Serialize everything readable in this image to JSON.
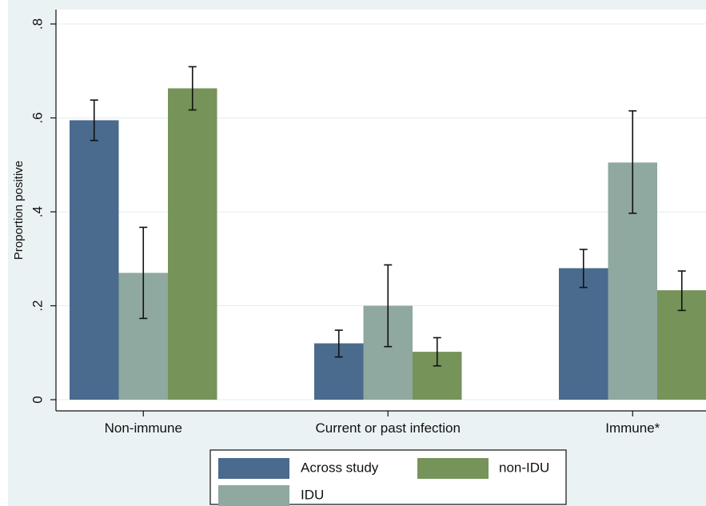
{
  "chart_data": {
    "type": "bar",
    "title": "",
    "xlabel": "",
    "ylabel": "Proportion positive",
    "ylim": [
      0,
      0.8
    ],
    "yticks": [
      0,
      0.2,
      0.4,
      0.6,
      0.8
    ],
    "ytick_labels": [
      "0",
      ".2",
      ".4",
      ".6",
      ".8"
    ],
    "categories": [
      "Non-immune",
      "Current or past infection",
      "Immune*"
    ],
    "series": [
      {
        "name": "Across study",
        "color": "#4a6a8e",
        "values": [
          0.595,
          0.12,
          0.28
        ],
        "ci_low": [
          0.552,
          0.091,
          0.239
        ],
        "ci_high": [
          0.638,
          0.148,
          0.32
        ]
      },
      {
        "name": "IDU",
        "color": "#8fa8a0",
        "values": [
          0.27,
          0.2,
          0.505
        ],
        "ci_low": [
          0.173,
          0.113,
          0.397
        ],
        "ci_high": [
          0.367,
          0.287,
          0.615
        ]
      },
      {
        "name": "non-IDU",
        "color": "#76935a",
        "values": [
          0.663,
          0.102,
          0.233
        ],
        "ci_low": [
          0.617,
          0.072,
          0.19
        ],
        "ci_high": [
          0.709,
          0.132,
          0.274
        ]
      }
    ],
    "grid": true,
    "legend_position": "bottom"
  }
}
